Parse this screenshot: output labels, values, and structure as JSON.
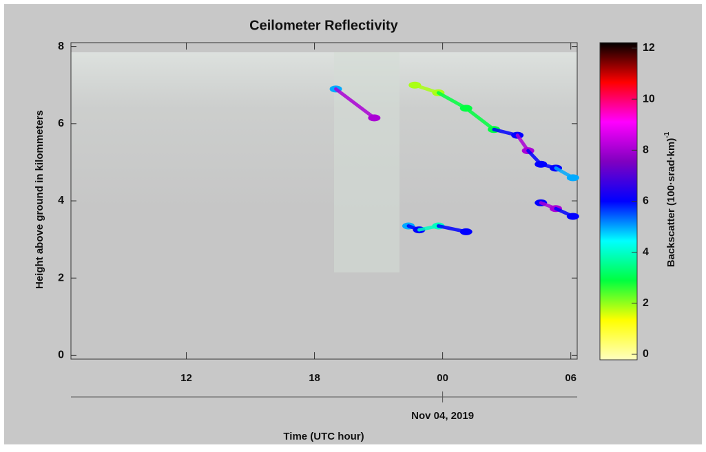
{
  "chart_data": {
    "type": "heatmap",
    "title": "Ceilometer Reflectivity",
    "y_label": "Height above ground in kilommeters",
    "x_label": "Time (UTC hour)",
    "xlim": [
      6.6,
      30.3
    ],
    "xticks": [
      12,
      18,
      {
        "value": 24,
        "label": "00"
      },
      {
        "value": 30,
        "label": "06"
      }
    ],
    "date_ticks": [
      {
        "value": 24,
        "label": "Nov 04, 2019"
      }
    ],
    "ylim": [
      -0.1,
      8.1
    ],
    "yticks": [
      0,
      2,
      4,
      6,
      8
    ],
    "colorbar_label": "Backscatter (100·srad·km)",
    "colorbar_label_exponent": "-1",
    "clim": [
      0,
      12
    ],
    "cticks": [
      0,
      2,
      4,
      6,
      8,
      10,
      12
    ],
    "colormap": [
      "#ffffc0",
      "#ffff00",
      "#00ff40",
      "#00ffff",
      "#0000ff",
      "#8000c0",
      "#ff00ff",
      "#ff0000",
      "#000000"
    ],
    "layers": [
      {
        "x": [
          22.7,
          23.8,
          25.1,
          26.4,
          27.5,
          28.0,
          28.6,
          29.3,
          30.1
        ],
        "y": [
          7.0,
          6.8,
          6.4,
          5.85,
          5.7,
          5.3,
          4.95,
          4.85,
          4.6
        ],
        "backscatter": [
          2,
          2,
          3,
          3,
          6,
          8,
          6,
          6,
          5
        ]
      },
      {
        "x": [
          22.4,
          22.9,
          23.8,
          25.1
        ],
        "y": [
          3.35,
          3.25,
          3.35,
          3.2
        ],
        "backscatter": [
          5,
          6,
          4,
          6
        ]
      },
      {
        "x": [
          28.6,
          29.3,
          30.1
        ],
        "y": [
          3.95,
          3.8,
          3.6
        ],
        "backscatter": [
          6,
          8,
          6
        ]
      },
      {
        "x": [
          19.0,
          20.8
        ],
        "y": [
          6.9,
          6.15
        ],
        "backscatter": [
          5,
          8
        ]
      }
    ]
  }
}
